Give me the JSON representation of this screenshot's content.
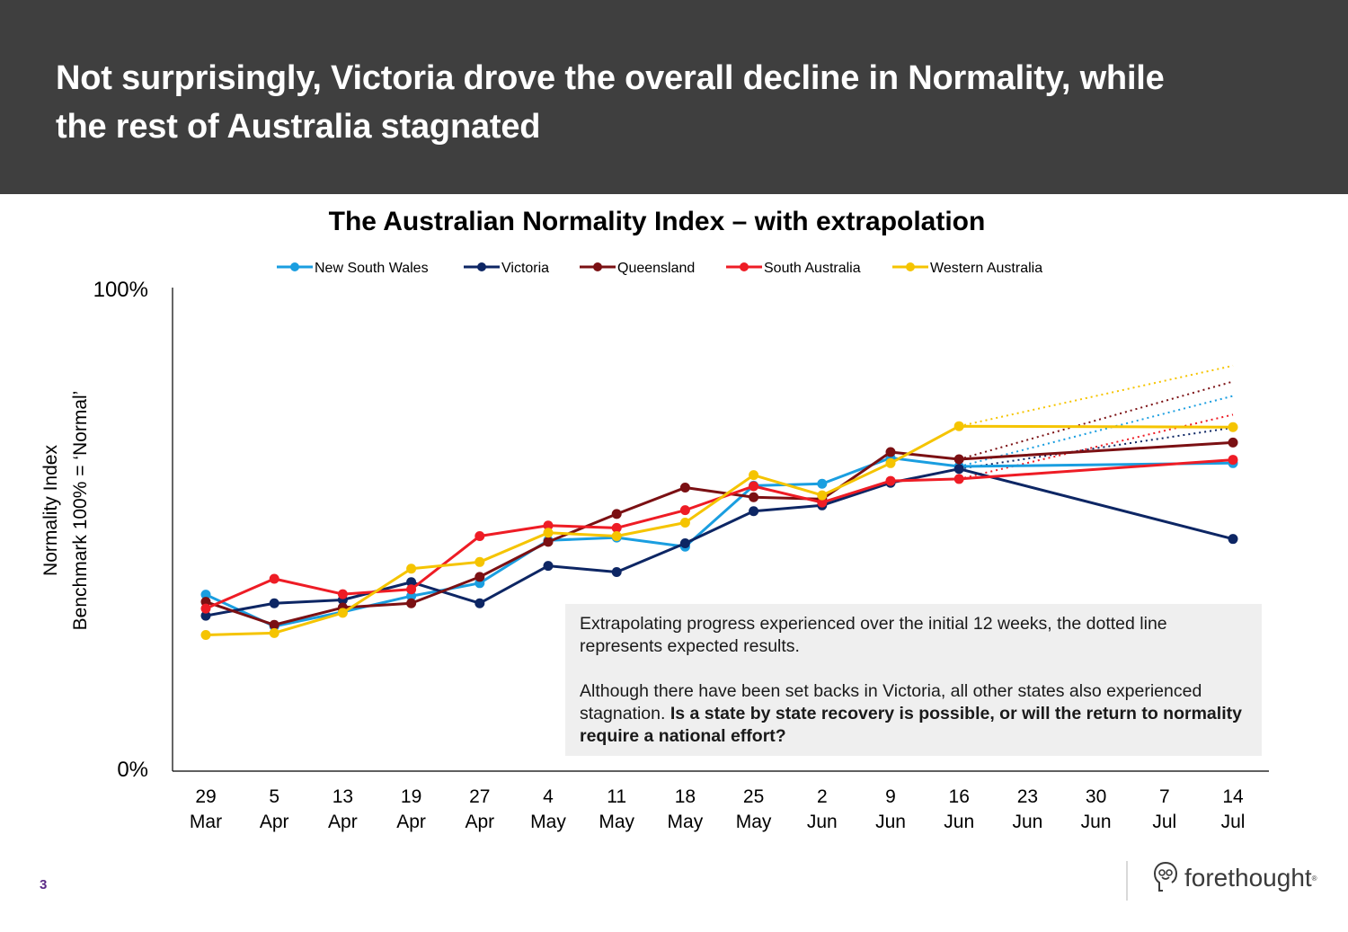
{
  "header": {
    "title": "Not surprisingly, Victoria drove the overall decline in Normality, while the rest of Australia stagnated"
  },
  "note": {
    "p1": "Extrapolating progress experienced over the initial 12 weeks, the dotted line represents expected results.",
    "p2_plain": "Although there have been set backs in Victoria, all other states also experienced stagnation. ",
    "p2_bold": "Is a state by state recovery is possible, or will the return to normality require a national effort?"
  },
  "footer": {
    "page_number": "3",
    "brand": "forethought",
    "brand_mark": "®"
  },
  "colors": {
    "header_bg": "#3f3f3f",
    "note_bg": "#efefef"
  },
  "chart_data": {
    "type": "line",
    "title": "The Australian Normality Index – with extrapolation",
    "ylabel": [
      "Normality Index",
      "Benchmark 100% = ‘Normal’"
    ],
    "xlabel": "",
    "ylim": [
      0,
      100
    ],
    "yticks": [
      "0%",
      "100%"
    ],
    "ytick_values": [
      0,
      100
    ],
    "grid": false,
    "legend_position": "top",
    "categories": [
      [
        "29",
        "Mar"
      ],
      [
        "5",
        "Apr"
      ],
      [
        "13",
        "Apr"
      ],
      [
        "19",
        "Apr"
      ],
      [
        "27",
        "Apr"
      ],
      [
        "4",
        "May"
      ],
      [
        "11",
        "May"
      ],
      [
        "18",
        "May"
      ],
      [
        "25",
        "May"
      ],
      [
        "2",
        "Jun"
      ],
      [
        "9",
        "Jun"
      ],
      [
        "16",
        "Jun"
      ],
      [
        "23",
        "Jun"
      ],
      [
        "30",
        "Jun"
      ],
      [
        "7",
        "Jul"
      ],
      [
        "14",
        "Jul"
      ]
    ],
    "series": [
      {
        "name": "New South Wales",
        "color": "#1a9ee0",
        "values": [
          36.4,
          29.8,
          32.8,
          36.1,
          38.8,
          47.7,
          48.3,
          46.4,
          59.1,
          59.5,
          64.9,
          63.1,
          null,
          null,
          null,
          63.8
        ],
        "extrapolation": [
          63.1,
          77.8
        ]
      },
      {
        "name": "Victoria",
        "color": "#0d2664",
        "values": [
          32.0,
          34.6,
          35.3,
          39.0,
          34.6,
          42.4,
          41.1,
          47.1,
          53.8,
          55.0,
          59.7,
          62.6,
          null,
          null,
          null,
          48.0
        ],
        "extrapolation": [
          62.6,
          71.2
        ]
      },
      {
        "name": "Queensland",
        "color": "#7b1013",
        "values": [
          34.9,
          30.1,
          33.7,
          34.6,
          40.1,
          47.4,
          53.2,
          58.7,
          56.7,
          56.3,
          66.1,
          64.6,
          null,
          null,
          null,
          68.1
        ],
        "extrapolation": [
          64.6,
          80.8
        ]
      },
      {
        "name": "South Australia",
        "color": "#ee1c25",
        "values": [
          33.5,
          39.7,
          36.5,
          37.5,
          48.6,
          50.8,
          50.3,
          54.0,
          59.0,
          55.6,
          60.1,
          60.5,
          null,
          null,
          null,
          64.5
        ],
        "extrapolation": [
          60.5,
          73.9
        ]
      },
      {
        "name": "Western Australia",
        "color": "#f5c400",
        "values": [
          28.0,
          28.4,
          32.6,
          41.8,
          43.2,
          49.3,
          48.6,
          51.4,
          61.3,
          57.1,
          63.8,
          71.5,
          null,
          null,
          null,
          71.3
        ],
        "extrapolation": [
          71.5,
          84.1
        ]
      }
    ]
  }
}
